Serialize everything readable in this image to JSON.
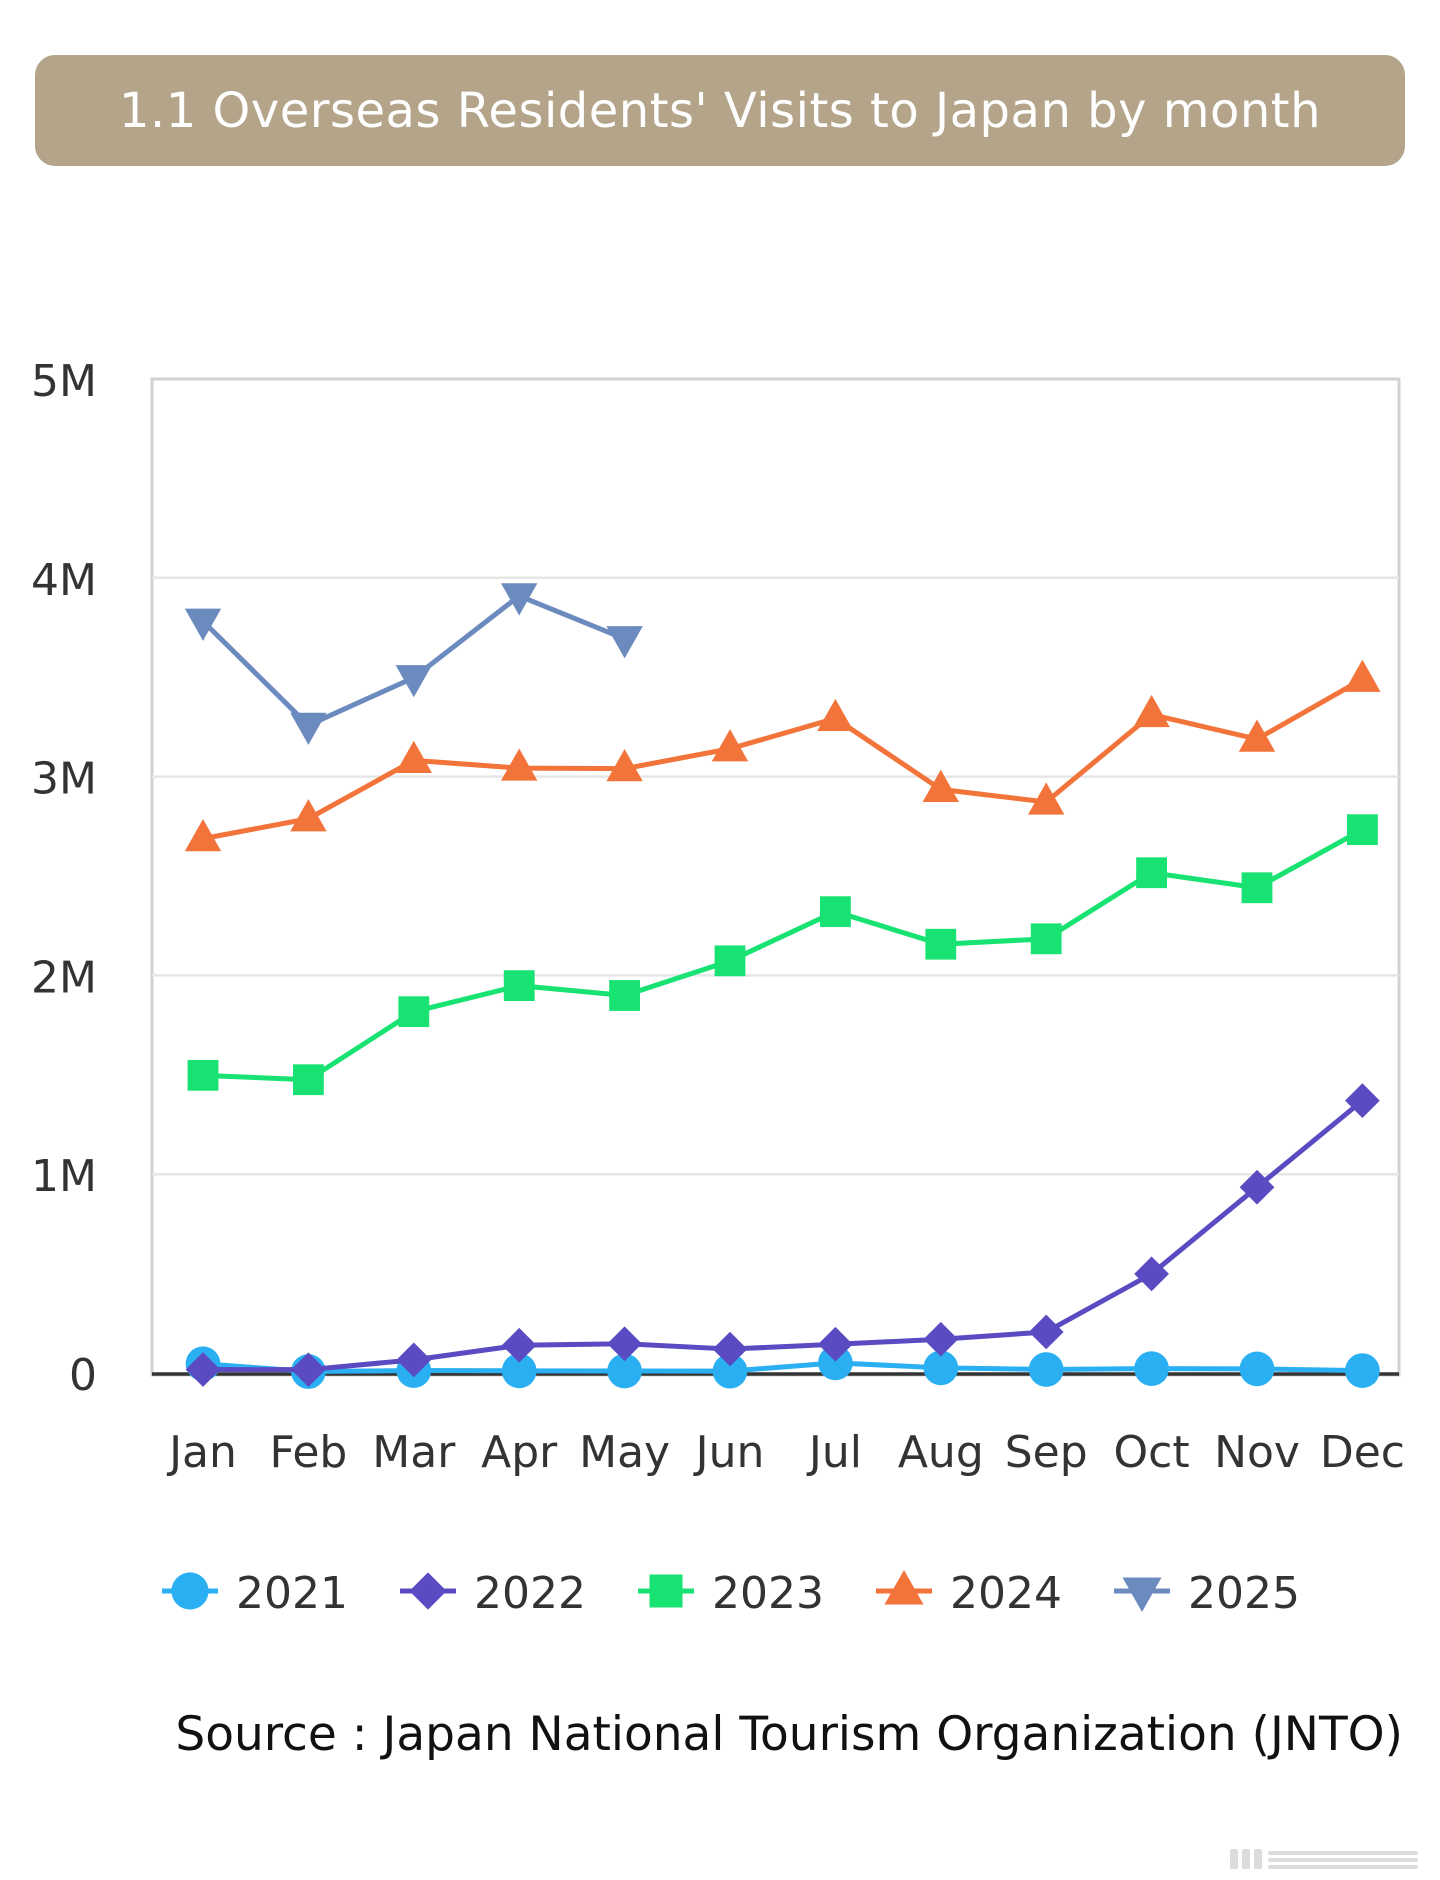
{
  "title": "1.1 Overseas Residents' Visits to Japan by month",
  "source": "Source : Japan National Tourism Organization (JNTO)",
  "chart_data": {
    "type": "line",
    "title": "1.1 Overseas Residents' Visits to Japan by month",
    "xlabel": "",
    "ylabel": "",
    "categories": [
      "Jan",
      "Feb",
      "Mar",
      "Apr",
      "May",
      "Jun",
      "Jul",
      "Aug",
      "Sep",
      "Oct",
      "Nov",
      "Dec"
    ],
    "y_ticks": [
      {
        "value": 0,
        "label": "0"
      },
      {
        "value": 1000000,
        "label": "1M"
      },
      {
        "value": 2000000,
        "label": "2M"
      },
      {
        "value": 3000000,
        "label": "3M"
      },
      {
        "value": 4000000,
        "label": "4M"
      },
      {
        "value": 5000000,
        "label": "5M"
      }
    ],
    "ylim": [
      0,
      5000000
    ],
    "grid": true,
    "legend_position": "bottom",
    "series": [
      {
        "name": "2021",
        "color": "#2ab0f2",
        "marker": "circle",
        "values": [
          46500,
          7400,
          12300,
          10900,
          10000,
          9300,
          51100,
          25900,
          17700,
          22100,
          20700,
          12100
        ]
      },
      {
        "name": "2022",
        "color": "#5a4bc2",
        "marker": "diamond",
        "values": [
          17800,
          16700,
          66100,
          139500,
          147000,
          120400,
          144500,
          169900,
          206500,
          498600,
          934500,
          1370100
        ]
      },
      {
        "name": "2023",
        "color": "#17e272",
        "marker": "square",
        "values": [
          1497300,
          1475300,
          1817500,
          1948600,
          1898900,
          2073300,
          2320600,
          2156900,
          2184000,
          2516500,
          2440800,
          2733000
        ]
      },
      {
        "name": "2024",
        "color": "#f2743a",
        "marker": "triangle-up",
        "values": [
          2688100,
          2788000,
          3081600,
          3042900,
          3040000,
          3140000,
          3292600,
          2935600,
          2872200,
          3312200,
          3188500,
          3489800
        ]
      },
      {
        "name": "2025",
        "color": "#6b8bbf",
        "marker": "triangle-down",
        "values": [
          3781600,
          3258000,
          3497600,
          3908900,
          3693300,
          null,
          null,
          null,
          null,
          null,
          null,
          null
        ]
      }
    ]
  }
}
